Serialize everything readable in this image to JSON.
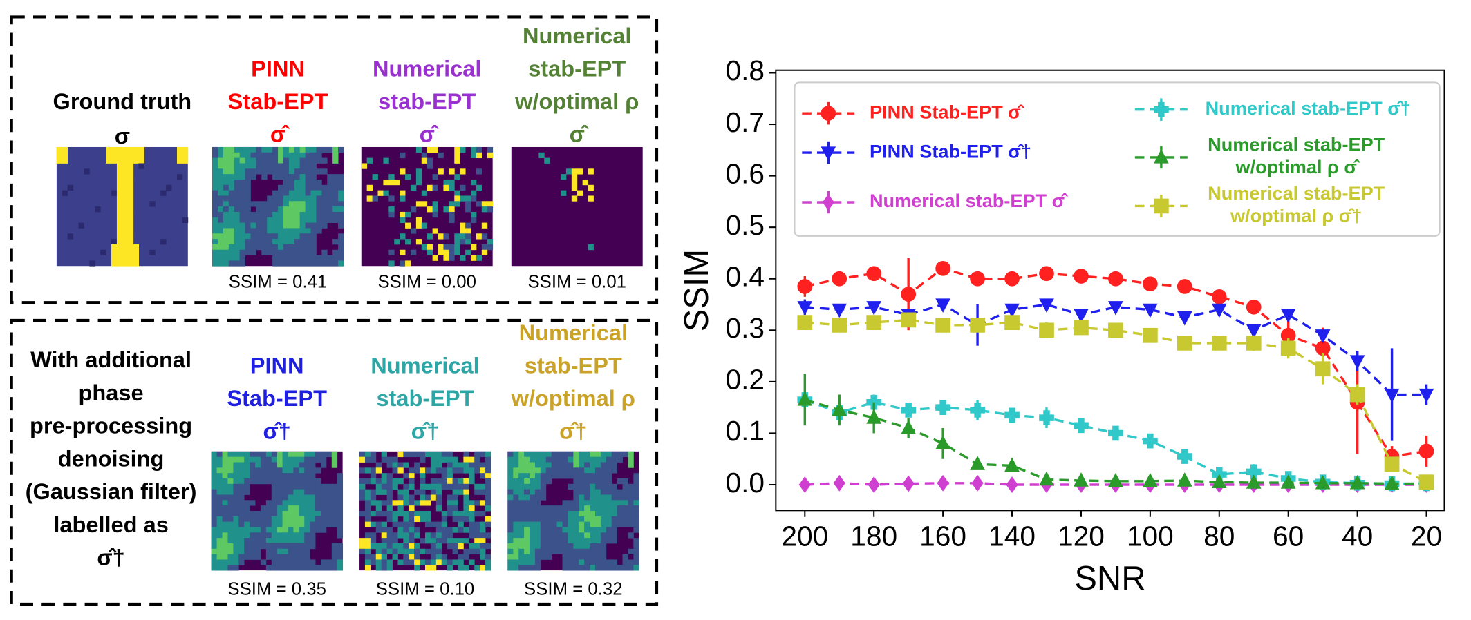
{
  "panels": [
    {
      "columns": [
        {
          "title": [
            "Ground truth",
            "σ"
          ],
          "color": "#000000"
        },
        {
          "title": [
            "PINN",
            "Stab-EPT",
            "σ̂"
          ],
          "color": "#ff0000",
          "ssim": "SSIM = 0.41"
        },
        {
          "title": [
            "Numerical",
            "stab-EPT",
            "σ̂"
          ],
          "color": "#9b30d0",
          "ssim": "SSIM = 0.00"
        },
        {
          "title": [
            "Numerical",
            "stab-EPT",
            "w/optimal ρ",
            "σ̂"
          ],
          "color": "#548235",
          "ssim": "SSIM = 0.01"
        }
      ]
    },
    {
      "label": [
        "With additional",
        "phase",
        "pre-processing",
        "denoising",
        "(Gaussian filter)",
        "labelled as",
        "σ̂†"
      ],
      "columns": [
        {
          "title": [
            "PINN",
            "Stab-EPT",
            "σ̂†"
          ],
          "color": "#1f1fe0",
          "ssim": "SSIM = 0.35"
        },
        {
          "title": [
            "Numerical",
            "stab-EPT",
            "σ̂†"
          ],
          "color": "#2ea6a6",
          "ssim": "SSIM = 0.10"
        },
        {
          "title": [
            "Numerical",
            "stab-EPT",
            "w/optimal ρ",
            "σ̂†"
          ],
          "color": "#c9a227",
          "ssim": "SSIM = 0.32"
        }
      ]
    }
  ],
  "chart_data": {
    "type": "line",
    "xlabel": "SNR",
    "ylabel": "SSIM",
    "x": [
      200,
      190,
      180,
      170,
      160,
      150,
      140,
      130,
      120,
      110,
      100,
      90,
      80,
      70,
      60,
      50,
      40,
      30,
      20
    ],
    "xlim": [
      208.4,
      14.8
    ],
    "xticks": [
      200,
      180,
      160,
      140,
      120,
      100,
      80,
      60,
      40,
      20
    ],
    "ylim": [
      -0.05,
      0.805
    ],
    "yticks": [
      {
        "value": 0,
        "label": "0.0"
      },
      0.1,
      0.2,
      0.3,
      0.4,
      0.5,
      0.6,
      0.7,
      0.8
    ],
    "legend": "upper center",
    "series": [
      {
        "name": "PINN Stab-EPT σ̂",
        "color": "#ff2020",
        "marker": "circle",
        "values": [
          0.385,
          0.4,
          0.41,
          0.37,
          0.42,
          0.4,
          0.4,
          0.41,
          0.405,
          0.4,
          0.39,
          0.385,
          0.365,
          0.345,
          0.29,
          0.265,
          0.16,
          0.055,
          0.065
        ],
        "error": [
          0.02,
          0.01,
          0.01,
          0.07,
          0.01,
          0.01,
          0.01,
          0.01,
          0.01,
          0.01,
          0.01,
          0.01,
          0.01,
          0.01,
          0.03,
          0.04,
          0.1,
          0.02,
          0.03
        ]
      },
      {
        "name": "PINN Stab-EPT σ̂†",
        "color": "#2020ee",
        "marker": "tri-down",
        "values": [
          0.345,
          0.34,
          0.345,
          0.33,
          0.35,
          0.31,
          0.34,
          0.35,
          0.33,
          0.345,
          0.34,
          0.325,
          0.34,
          0.3,
          0.33,
          0.29,
          0.24,
          0.175,
          0.175
        ],
        "error": [
          0.015,
          0.01,
          0.01,
          0.01,
          0.01,
          0.04,
          0.01,
          0.01,
          0.01,
          0.01,
          0.01,
          0.01,
          0.01,
          0.01,
          0.01,
          0.01,
          0.02,
          0.09,
          0.02
        ]
      },
      {
        "name": "Numerical stab-EPT σ̂",
        "color": "#d040d0",
        "marker": "diamond",
        "values": [
          0,
          0.003,
          0,
          0.002,
          0.003,
          0.003,
          0,
          0,
          0,
          0,
          0,
          0,
          0,
          0,
          0,
          0,
          0,
          0,
          0
        ],
        "error": [
          0.005,
          0.005,
          0.005,
          0.005,
          0.005,
          0.005,
          0.005,
          0.005,
          0.005,
          0.005,
          0.005,
          0.005,
          0.005,
          0.005,
          0.005,
          0.005,
          0.005,
          0.005,
          0.005
        ]
      },
      {
        "name": "Numerical stab-EPT σ̂†",
        "color": "#30c8c8",
        "marker": "plus",
        "values": [
          0.165,
          0.14,
          0.16,
          0.145,
          0.15,
          0.145,
          0.135,
          0.13,
          0.115,
          0.1,
          0.085,
          0.055,
          0.02,
          0.025,
          0.012,
          0.005,
          0.003,
          0.002,
          0.002
        ],
        "error": [
          0.015,
          0.015,
          0.015,
          0.01,
          0.01,
          0.02,
          0.01,
          0.02,
          0.01,
          0.01,
          0.01,
          0.01,
          0.01,
          0.015,
          0.01,
          0.005,
          0.005,
          0.005,
          0.005
        ]
      },
      {
        "name": "Numerical stab-EPT w/optimal ρ σ̂",
        "color": "#2a9a2a",
        "marker": "tri-up",
        "values": [
          0.165,
          0.145,
          0.13,
          0.11,
          0.08,
          0.04,
          0.037,
          0.01,
          0.008,
          0.007,
          0.007,
          0.008,
          0.005,
          0.004,
          0.004,
          0.003,
          0.003,
          0.002,
          0.002
        ],
        "error": [
          0.05,
          0.03,
          0.03,
          0.02,
          0.03,
          0.01,
          0.01,
          0.005,
          0.005,
          0.005,
          0.005,
          0.005,
          0.005,
          0.005,
          0.005,
          0.005,
          0.005,
          0.005,
          0.005
        ]
      },
      {
        "name": "Numerical stab-EPT w/optimal ρ σ̂†",
        "color": "#c8c830",
        "marker": "square",
        "values": [
          0.315,
          0.31,
          0.315,
          0.32,
          0.31,
          0.31,
          0.315,
          0.3,
          0.305,
          0.3,
          0.29,
          0.275,
          0.275,
          0.275,
          0.265,
          0.225,
          0.175,
          0.04,
          0.005
        ],
        "error": [
          0.01,
          0.01,
          0.01,
          0.01,
          0.01,
          0.01,
          0.01,
          0.015,
          0.01,
          0.01,
          0.01,
          0.01,
          0.01,
          0.015,
          0.02,
          0.03,
          0.02,
          0.01,
          0.01
        ]
      }
    ]
  }
}
